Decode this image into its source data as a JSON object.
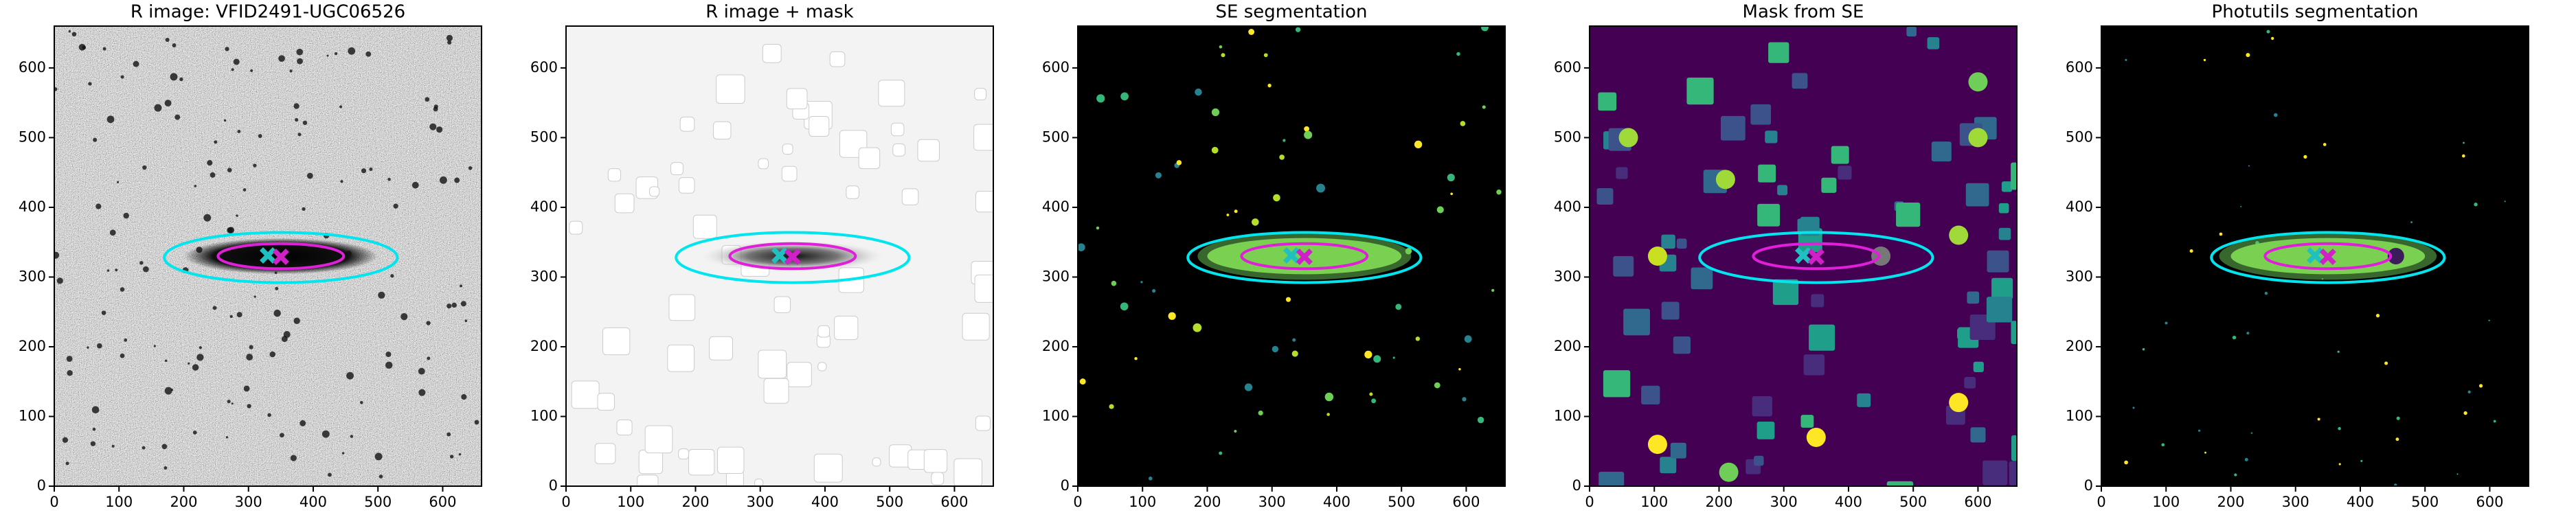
{
  "chart_data": [
    {
      "type": "image",
      "title": "R image: VFID2491-UGC06526",
      "xlim": [
        0,
        660
      ],
      "ylim": [
        0,
        660
      ],
      "xticks": [
        0,
        100,
        200,
        300,
        400,
        500,
        600
      ],
      "yticks": [
        0,
        100,
        200,
        300,
        400,
        500,
        600
      ],
      "ellipses": [
        {
          "cx": 350,
          "cy": 328,
          "rx": 180,
          "ry": 36,
          "color": "#00e5ee"
        },
        {
          "cx": 350,
          "cy": 330,
          "rx": 97,
          "ry": 18,
          "color": "#e020d8"
        }
      ],
      "markers": [
        {
          "x": 330,
          "y": 331,
          "color": "#20c0c0"
        },
        {
          "x": 350,
          "y": 329,
          "color": "#d020c8"
        }
      ]
    },
    {
      "type": "image",
      "title": "R image + mask",
      "xlim": [
        0,
        660
      ],
      "ylim": [
        0,
        660
      ],
      "xticks": [
        0,
        100,
        200,
        300,
        400,
        500,
        600
      ],
      "yticks": [
        0,
        100,
        200,
        300,
        400,
        500,
        600
      ],
      "ellipses": [
        {
          "cx": 350,
          "cy": 328,
          "rx": 180,
          "ry": 36,
          "color": "#00e5ee"
        },
        {
          "cx": 350,
          "cy": 330,
          "rx": 97,
          "ry": 18,
          "color": "#e020d8"
        }
      ],
      "markers": [
        {
          "x": 330,
          "y": 331,
          "color": "#20c0c0"
        },
        {
          "x": 350,
          "y": 329,
          "color": "#d020c8"
        }
      ]
    },
    {
      "type": "image",
      "title": "SE segmentation",
      "xlim": [
        0,
        660
      ],
      "ylim": [
        0,
        660
      ],
      "xticks": [
        0,
        100,
        200,
        300,
        400,
        500,
        600
      ],
      "yticks": [
        0,
        100,
        200,
        300,
        400,
        500,
        600
      ],
      "ellipses": [
        {
          "cx": 350,
          "cy": 328,
          "rx": 180,
          "ry": 36,
          "color": "#00e5ee"
        },
        {
          "cx": 350,
          "cy": 330,
          "rx": 97,
          "ry": 18,
          "color": "#e020d8"
        }
      ],
      "markers": [
        {
          "x": 330,
          "y": 331,
          "color": "#20c0c0"
        },
        {
          "x": 350,
          "y": 329,
          "color": "#d020c8"
        }
      ]
    },
    {
      "type": "image",
      "title": "Mask from SE",
      "xlim": [
        0,
        660
      ],
      "ylim": [
        0,
        660
      ],
      "xticks": [
        0,
        100,
        200,
        300,
        400,
        500,
        600
      ],
      "yticks": [
        0,
        100,
        200,
        300,
        400,
        500,
        600
      ],
      "ellipses": [
        {
          "cx": 350,
          "cy": 328,
          "rx": 180,
          "ry": 36,
          "color": "#00e5ee"
        },
        {
          "cx": 350,
          "cy": 330,
          "rx": 97,
          "ry": 18,
          "color": "#e020d8"
        }
      ],
      "markers": [
        {
          "x": 330,
          "y": 331,
          "color": "#20c0c0"
        },
        {
          "x": 350,
          "y": 329,
          "color": "#d020c8"
        }
      ]
    },
    {
      "type": "image",
      "title": "Photutils segmentation",
      "xlim": [
        0,
        660
      ],
      "ylim": [
        0,
        660
      ],
      "xticks": [
        0,
        100,
        200,
        300,
        400,
        500,
        600
      ],
      "yticks": [
        0,
        100,
        200,
        300,
        400,
        500,
        600
      ],
      "ellipses": [
        {
          "cx": 350,
          "cy": 328,
          "rx": 180,
          "ry": 36,
          "color": "#00e5ee"
        },
        {
          "cx": 350,
          "cy": 330,
          "rx": 97,
          "ry": 18,
          "color": "#e020d8"
        }
      ],
      "markers": [
        {
          "x": 330,
          "y": 331,
          "color": "#20c0c0"
        },
        {
          "x": 350,
          "y": 329,
          "color": "#d020c8"
        }
      ]
    }
  ]
}
